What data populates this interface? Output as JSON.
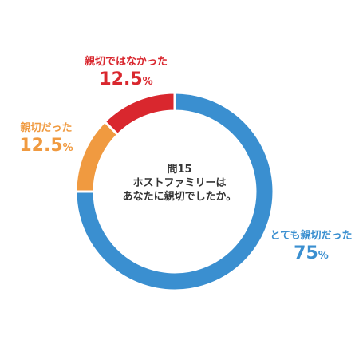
{
  "chart_data": {
    "type": "pie",
    "style": "donut",
    "title": "問15\nホストファミリーは\nあなたに親切でしたか。",
    "unit": "%",
    "slices": [
      {
        "label": "とても親切だった",
        "value": 75,
        "display": "75",
        "color": "#3a8fd0"
      },
      {
        "label": "親切だった",
        "value": 12.5,
        "display": "12.5",
        "color": "#f09a40"
      },
      {
        "label": "親切ではなかった",
        "value": 12.5,
        "display": "12.5",
        "color": "#d9272e"
      }
    ]
  }
}
